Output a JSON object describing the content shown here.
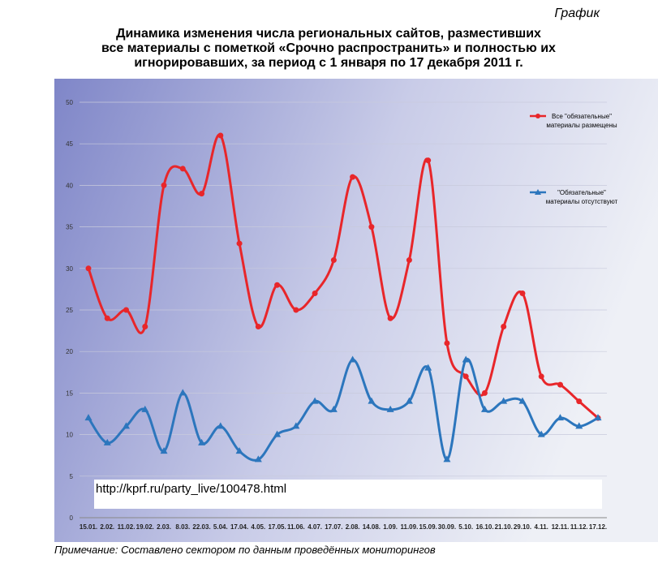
{
  "header": "График",
  "chart_data": {
    "type": "line",
    "title": [
      "Динамика изменения числа региональных сайтов, разместивших",
      "все материалы с пометкой «Срочно распространить» и полностью их",
      "игнорировавших, за период с 1 января по 17 декабря 2011 г."
    ],
    "categories": [
      "15.01.",
      "2.02.",
      "11.02.",
      "19.02.",
      "2.03.",
      "8.03.",
      "22.03.",
      "5.04.",
      "17.04.",
      "4.05.",
      "17.05.",
      "11.06.",
      "4.07.",
      "17.07.",
      "2.08.",
      "14.08.",
      "1.09.",
      "11.09.",
      "15.09.",
      "30.09.",
      "5.10.",
      "16.10.",
      "21.10.",
      "29.10.",
      "4.11.",
      "12.11.",
      "11.12.",
      "17.12."
    ],
    "series": [
      {
        "name": "Все \"обязательные\" материалы размещены",
        "color": "#e8262a",
        "marker": "circle",
        "values": [
          30,
          24,
          25,
          23,
          40,
          42,
          39,
          46,
          33,
          23,
          28,
          25,
          27,
          31,
          41,
          35,
          24,
          31,
          43,
          21,
          17,
          15,
          23,
          27,
          17,
          16,
          14,
          12
        ]
      },
      {
        "name": "\"Обязательные\" материалы отсутствуют",
        "color": "#2c76bd",
        "marker": "triangle",
        "values": [
          12,
          9,
          11,
          13,
          8,
          15,
          9,
          11,
          8,
          7,
          10,
          11,
          14,
          13,
          19,
          14,
          13,
          14,
          18,
          7,
          19,
          13,
          14,
          14,
          10,
          12,
          11,
          12
        ]
      }
    ],
    "ylim": [
      0,
      50
    ],
    "yticks": [
      0,
      5,
      10,
      15,
      20,
      25,
      30,
      35,
      40,
      45,
      50
    ],
    "grid": true
  },
  "source_url": "http://kprf.ru/party_live/100478.html",
  "note": "Примечание: Составлено сектором по данным проведённых мониторингов"
}
